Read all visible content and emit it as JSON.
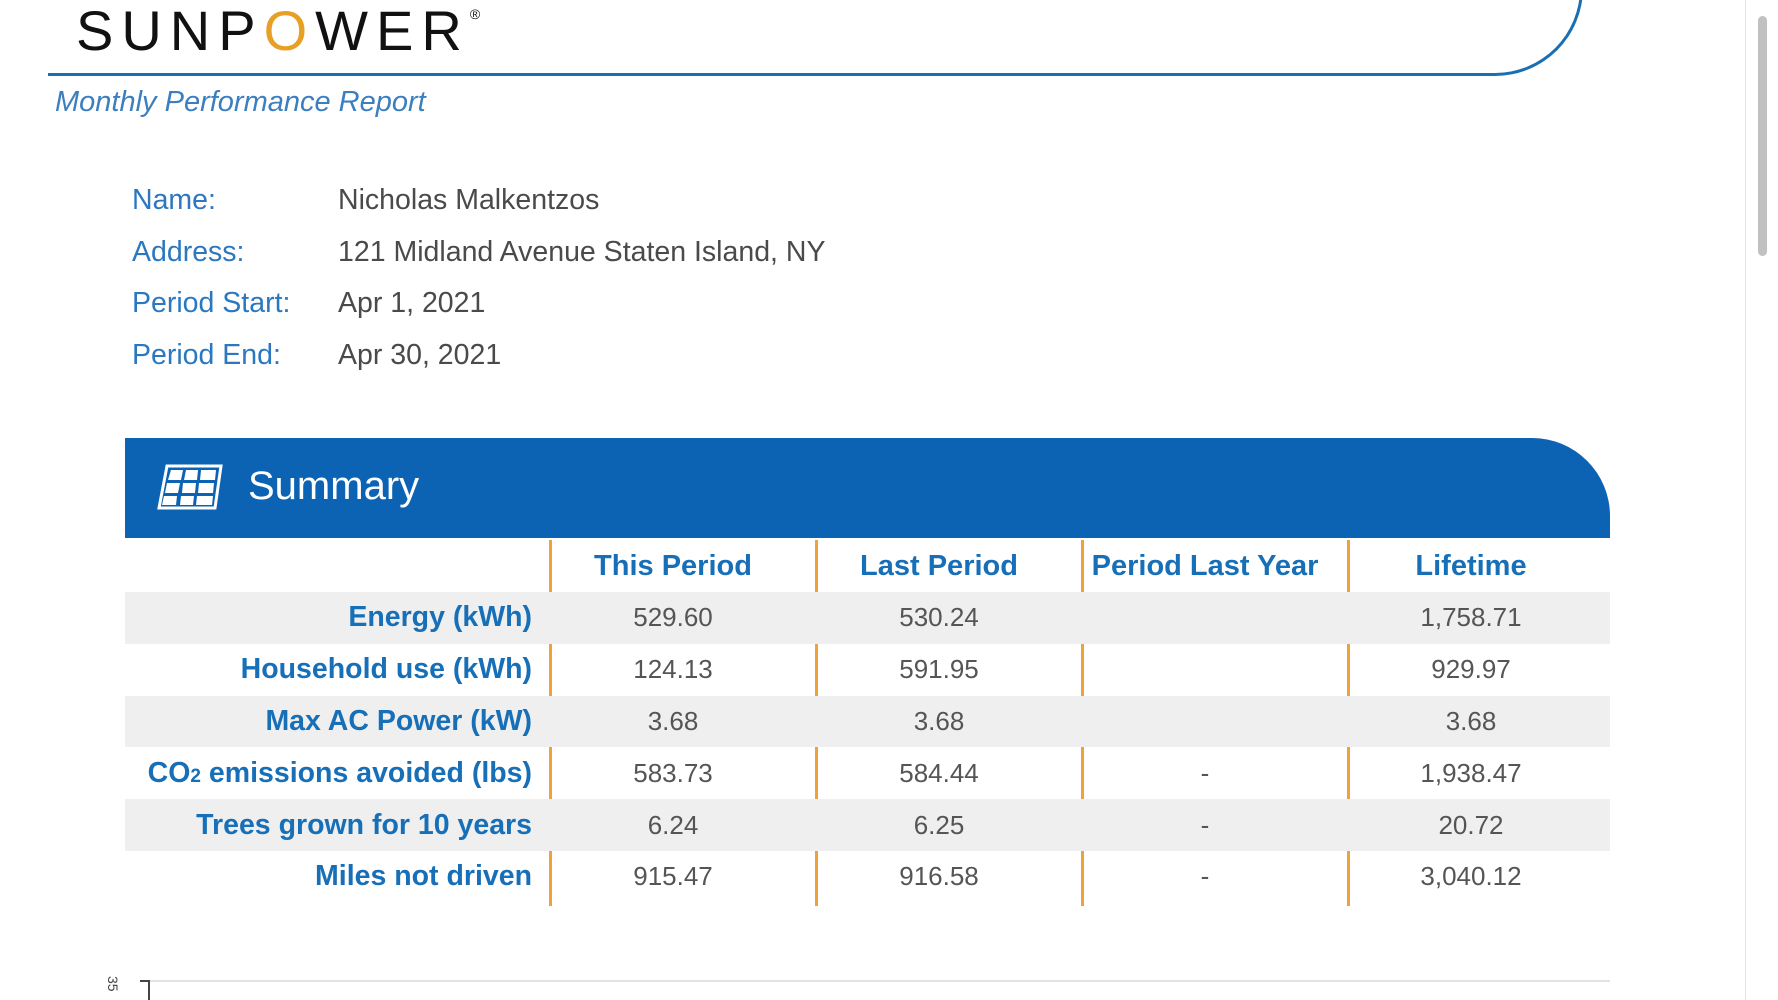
{
  "brand": {
    "logo_part1": "SUNP",
    "logo_o": "O",
    "logo_part2": "WER",
    "registered": "®"
  },
  "report": {
    "subtitle": "Monthly Performance Report"
  },
  "customer": [
    {
      "label": "Name:",
      "value": "Nicholas Malkentzos"
    },
    {
      "label": "Address:",
      "value": "121 Midland Avenue Staten Island, NY"
    },
    {
      "label": "Period Start:",
      "value": "Apr 1, 2021"
    },
    {
      "label": "Period End:",
      "value": "Apr 30, 2021"
    }
  ],
  "summary": {
    "title": "Summary",
    "icon": "solar-panel-icon",
    "columns": [
      "This Period",
      "Last Period",
      "Period Last Year",
      "Lifetime"
    ],
    "rows": [
      {
        "label": "Energy (kWh)",
        "values": [
          "529.60",
          "530.24",
          "",
          "1,758.71"
        ]
      },
      {
        "label": "Household use (kWh)",
        "values": [
          "124.13",
          "591.95",
          "",
          "929.97"
        ]
      },
      {
        "label": "Max AC Power (kW)",
        "values": [
          "3.68",
          "3.68",
          "",
          "3.68"
        ]
      },
      {
        "label_prefix": "CO",
        "label_sub": "2",
        "label_suffix": " emissions avoided (lbs)",
        "values": [
          "583.73",
          "584.44",
          "-",
          "1,938.47"
        ]
      },
      {
        "label": "Trees grown for 10 years",
        "values": [
          "6.24",
          "6.25",
          "-",
          "20.72"
        ]
      },
      {
        "label": "Miles not driven",
        "values": [
          "915.47",
          "916.58",
          "-",
          "3,040.12"
        ]
      }
    ]
  },
  "chart_stub": {
    "y_tick_label": "35"
  },
  "colors": {
    "brand_blue": "#0d63b3",
    "label_blue": "#176fb8",
    "divider_orange": "#f0a23a",
    "logo_orange": "#e8a024"
  }
}
